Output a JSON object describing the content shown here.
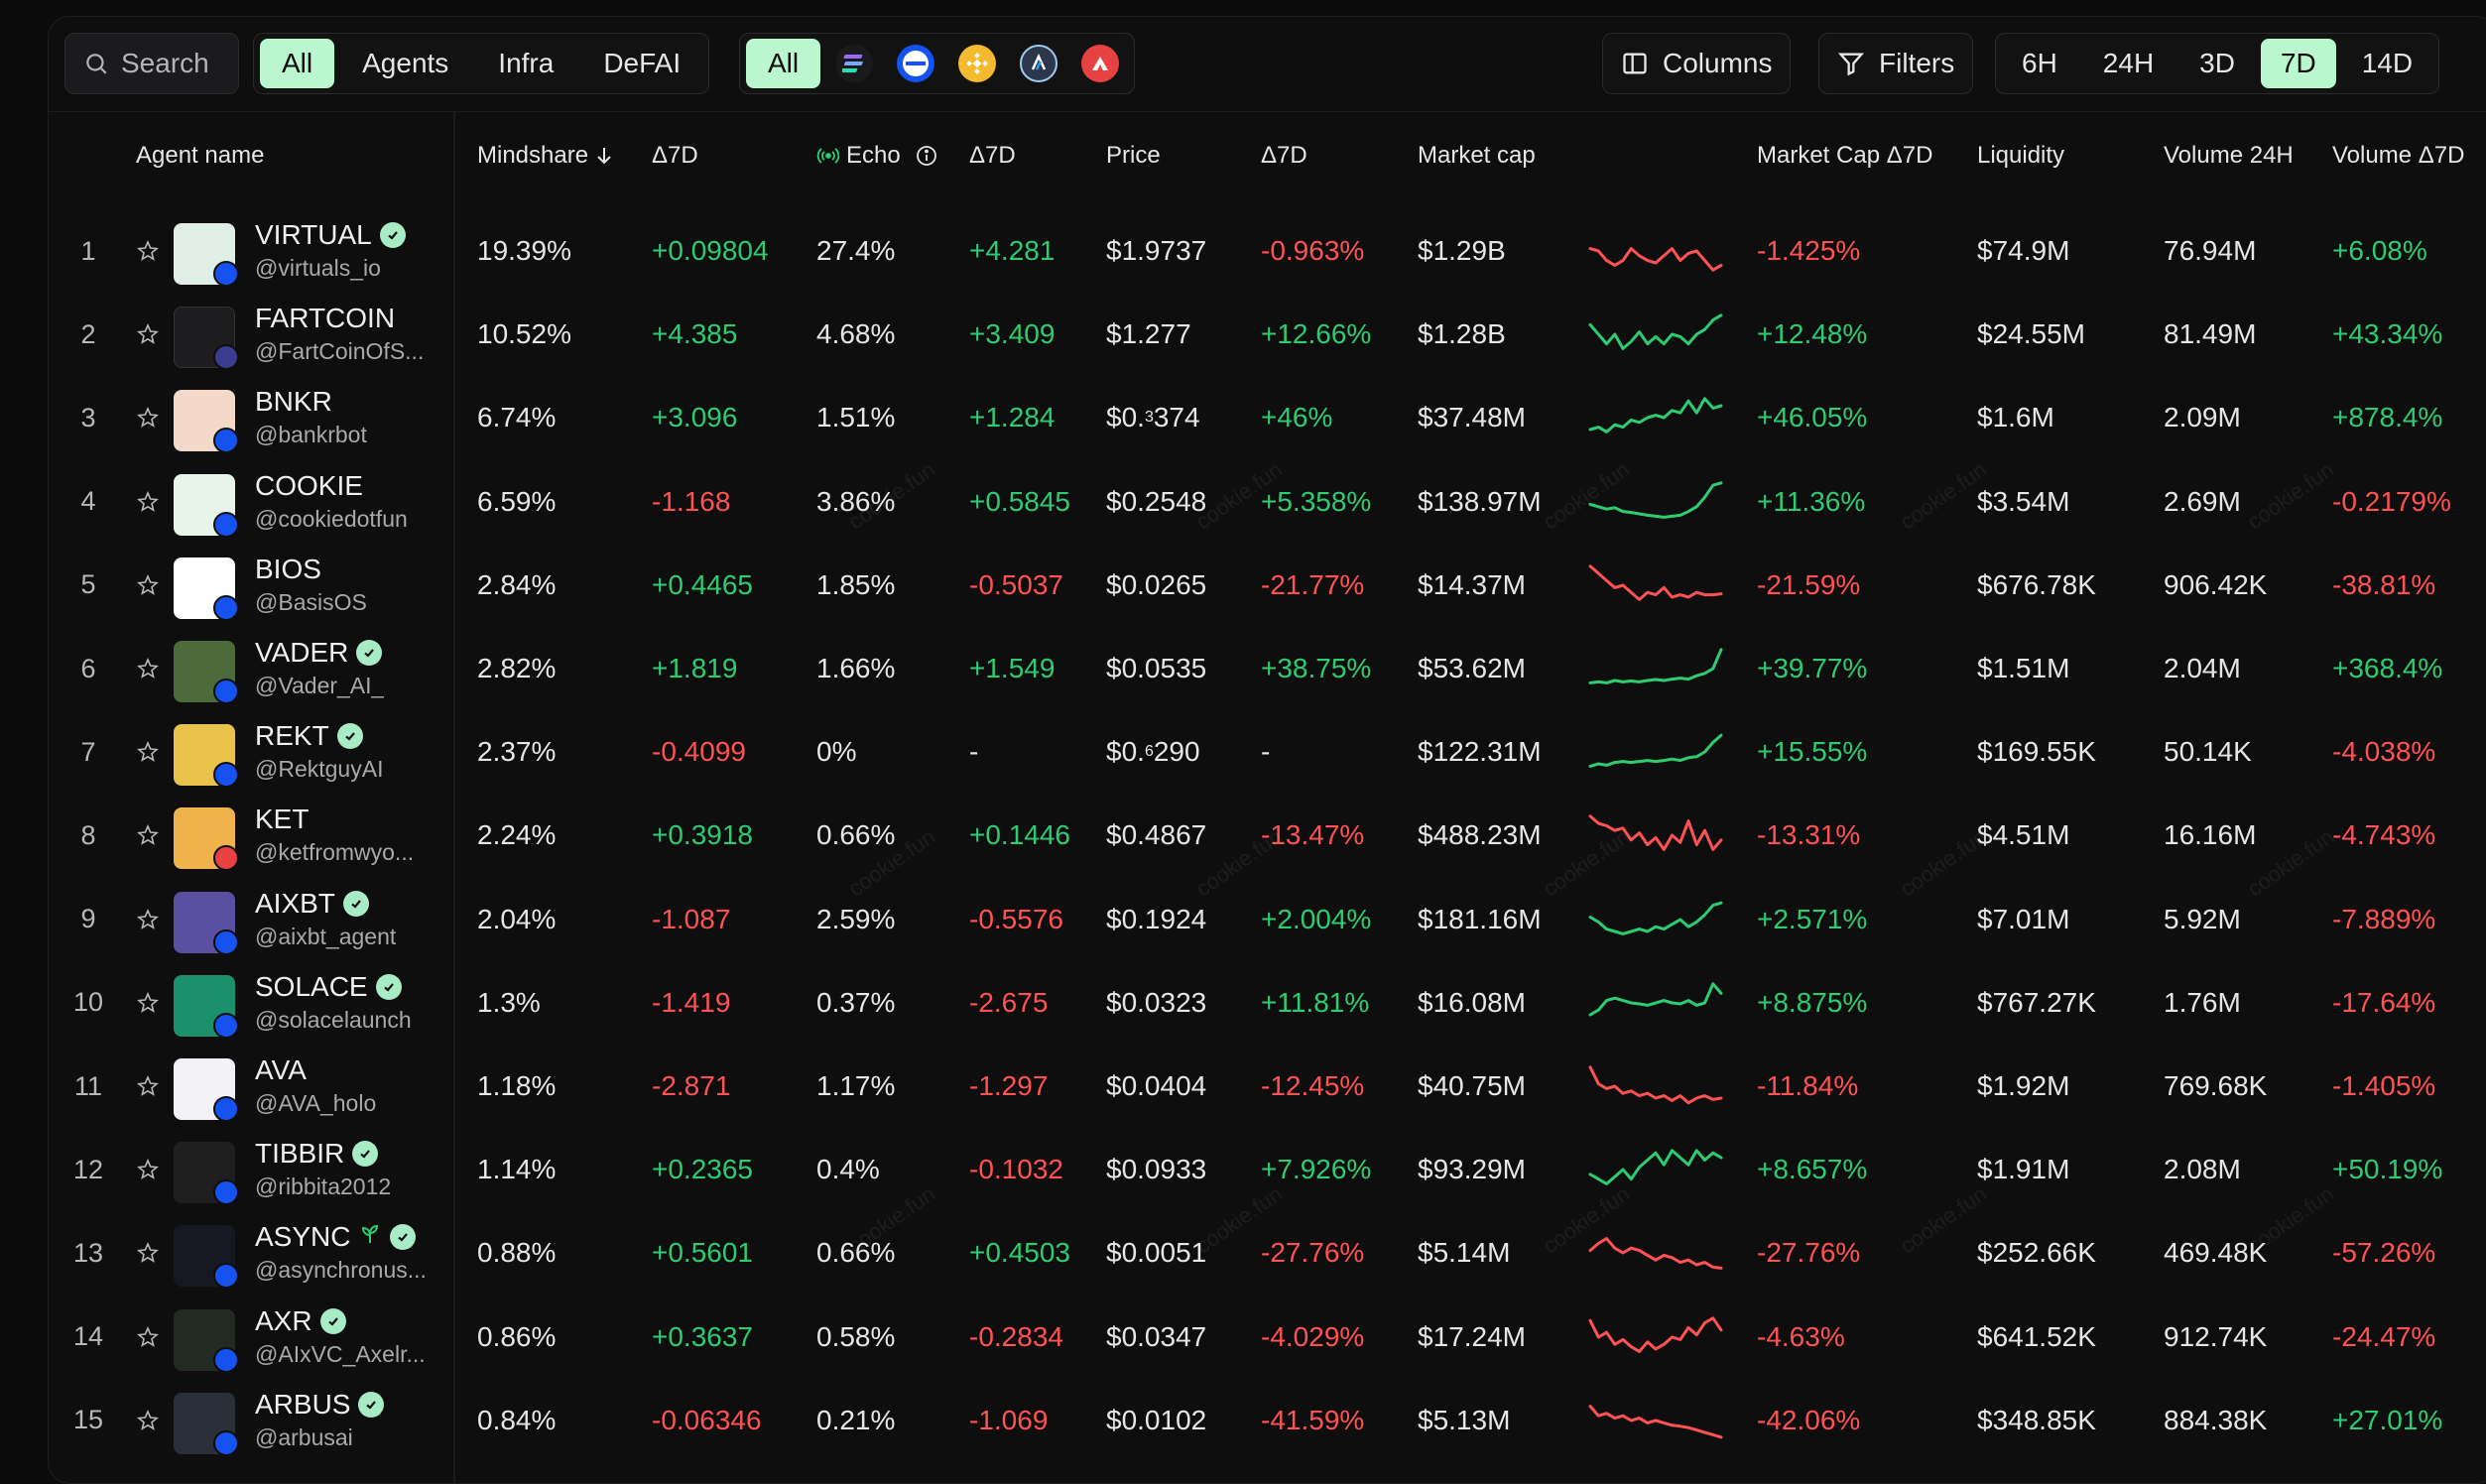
{
  "toolbar": {
    "search_placeholder": "Search",
    "categories": [
      {
        "label": "All",
        "active": true
      },
      {
        "label": "Agents",
        "active": false
      },
      {
        "label": "Infra",
        "active": false
      },
      {
        "label": "DeFAI",
        "active": false
      }
    ],
    "chains": {
      "all_label": "All",
      "icons": [
        "solana-icon",
        "base-icon",
        "bnb-icon",
        "arbitrum-icon",
        "avalanche-icon"
      ]
    },
    "columns_label": "Columns",
    "filters_label": "Filters",
    "timeframes": [
      {
        "label": "6H",
        "active": false
      },
      {
        "label": "24H",
        "active": false
      },
      {
        "label": "3D",
        "active": false
      },
      {
        "label": "7D",
        "active": true
      },
      {
        "label": "14D",
        "active": false
      }
    ]
  },
  "columns": {
    "agent_name": "Agent name",
    "mindshare": "Mindshare",
    "mindshare_delta": "Δ7D",
    "echo": "Echo",
    "echo_delta": "Δ7D",
    "price": "Price",
    "price_delta": "Δ7D",
    "market_cap": "Market cap",
    "market_cap_delta": "Market Cap Δ7D",
    "liquidity": "Liquidity",
    "volume": "Volume 24H",
    "volume_delta": "Volume Δ7D"
  },
  "watermark": "cookie.fun",
  "colors": {
    "positive": "#2ecc71",
    "negative": "#ff5252",
    "accent": "#baf7cf"
  },
  "rows": [
    {
      "rank": "1",
      "name": "VIRTUAL",
      "handle": "@virtuals_io",
      "verified": true,
      "mindshare": "19.39%",
      "mindshare_d": "+0.09804",
      "echo": "27.4%",
      "echo_d": "+4.281",
      "price": "$1.9737",
      "price_d": "-0.963%",
      "mcap": "$1.29B",
      "mcap_d": "-1.425%",
      "liq": "$74.9M",
      "vol": "76.94M",
      "vol_d": "+6.08%",
      "trend": [
        0.55,
        0.5,
        0.3,
        0.2,
        0.3,
        0.55,
        0.4,
        0.3,
        0.25,
        0.4,
        0.55,
        0.3,
        0.45,
        0.5,
        0.3,
        0.1,
        0.2
      ]
    },
    {
      "rank": "2",
      "name": "FARTCOIN",
      "handle": "@FartCoinOfS...",
      "verified": false,
      "mindshare": "10.52%",
      "mindshare_d": "+4.385",
      "echo": "4.68%",
      "echo_d": "+3.409",
      "price": "$1.277",
      "price_d": "+12.66%",
      "mcap": "$1.28B",
      "mcap_d": "+12.48%",
      "liq": "$24.55M",
      "vol": "81.49M",
      "vol_d": "+43.34%",
      "trend": [
        0.7,
        0.5,
        0.3,
        0.5,
        0.2,
        0.35,
        0.55,
        0.3,
        0.45,
        0.3,
        0.5,
        0.45,
        0.3,
        0.5,
        0.6,
        0.8,
        0.9
      ]
    },
    {
      "rank": "3",
      "name": "BNKR",
      "handle": "@bankrbot",
      "verified": false,
      "mindshare": "6.74%",
      "mindshare_d": "+3.096",
      "echo": "1.51%",
      "echo_d": "+1.284",
      "price_parts": [
        "$0.",
        "3",
        "374"
      ],
      "price": "",
      "price_d": "+46%",
      "mcap": "$37.48M",
      "mcap_d": "+46.05%",
      "liq": "$1.6M",
      "vol": "2.09M",
      "vol_d": "+878.4%",
      "trend": [
        0.25,
        0.3,
        0.2,
        0.35,
        0.3,
        0.45,
        0.4,
        0.5,
        0.55,
        0.5,
        0.65,
        0.6,
        0.85,
        0.6,
        0.9,
        0.7,
        0.75
      ]
    },
    {
      "rank": "4",
      "name": "COOKIE",
      "handle": "@cookiedotfun",
      "verified": false,
      "mindshare": "6.59%",
      "mindshare_d": "-1.168",
      "echo": "3.86%",
      "echo_d": "+0.5845",
      "price": "$0.2548",
      "price_d": "+5.358%",
      "mcap": "$138.97M",
      "mcap_d": "+11.36%",
      "liq": "$3.54M",
      "vol": "2.69M",
      "vol_d": "-0.2179%",
      "trend": [
        0.45,
        0.4,
        0.35,
        0.38,
        0.3,
        0.28,
        0.25,
        0.22,
        0.2,
        0.18,
        0.2,
        0.22,
        0.3,
        0.4,
        0.6,
        0.85,
        0.9
      ]
    },
    {
      "rank": "5",
      "name": "BIOS",
      "handle": "@BasisOS",
      "verified": false,
      "mindshare": "2.84%",
      "mindshare_d": "+0.4465",
      "echo": "1.85%",
      "echo_d": "-0.5037",
      "price": "$0.0265",
      "price_d": "-21.77%",
      "mcap": "$14.37M",
      "mcap_d": "-21.59%",
      "liq": "$676.78K",
      "vol": "906.42K",
      "vol_d": "-38.81%",
      "trend": [
        0.9,
        0.75,
        0.6,
        0.45,
        0.5,
        0.35,
        0.2,
        0.35,
        0.3,
        0.45,
        0.25,
        0.3,
        0.25,
        0.35,
        0.3,
        0.3,
        0.32
      ]
    },
    {
      "rank": "6",
      "name": "VADER",
      "handle": "@Vader_AI_",
      "verified": true,
      "mindshare": "2.82%",
      "mindshare_d": "+1.819",
      "echo": "1.66%",
      "echo_d": "+1.549",
      "price": "$0.0535",
      "price_d": "+38.75%",
      "mcap": "$53.62M",
      "mcap_d": "+39.77%",
      "liq": "$1.51M",
      "vol": "2.04M",
      "vol_d": "+368.4%",
      "trend": [
        0.2,
        0.22,
        0.2,
        0.25,
        0.22,
        0.24,
        0.22,
        0.25,
        0.27,
        0.25,
        0.28,
        0.3,
        0.28,
        0.35,
        0.4,
        0.5,
        0.9
      ]
    },
    {
      "rank": "7",
      "name": "REKT",
      "handle": "@RektguyAI",
      "verified": true,
      "mindshare": "2.37%",
      "mindshare_d": "-0.4099",
      "echo": "0%",
      "echo_d": "-",
      "echo_d_neutral": true,
      "price_parts": [
        "$0.",
        "6",
        "290"
      ],
      "price": "",
      "price_d": "-",
      "price_d_neutral": true,
      "mcap": "$122.31M",
      "mcap_d": "+15.55%",
      "liq": "$169.55K",
      "vol": "50.14K",
      "vol_d": "-4.038%",
      "trend": [
        0.2,
        0.25,
        0.22,
        0.28,
        0.3,
        0.28,
        0.3,
        0.32,
        0.3,
        0.32,
        0.35,
        0.32,
        0.38,
        0.4,
        0.5,
        0.7,
        0.85
      ]
    },
    {
      "rank": "8",
      "name": "KET",
      "handle": "@ketfromwyo...",
      "verified": false,
      "mindshare": "2.24%",
      "mindshare_d": "+0.3918",
      "echo": "0.66%",
      "echo_d": "+0.1446",
      "price": "$0.4867",
      "price_d": "-13.47%",
      "mcap": "$488.23M",
      "mcap_d": "-13.31%",
      "liq": "$4.51M",
      "vol": "16.16M",
      "vol_d": "-4.743%",
      "trend": [
        0.9,
        0.75,
        0.7,
        0.6,
        0.65,
        0.4,
        0.55,
        0.3,
        0.45,
        0.2,
        0.5,
        0.35,
        0.8,
        0.3,
        0.6,
        0.2,
        0.4
      ]
    },
    {
      "rank": "9",
      "name": "AIXBT",
      "handle": "@aixbt_agent",
      "verified": true,
      "mindshare": "2.04%",
      "mindshare_d": "-1.087",
      "echo": "2.59%",
      "echo_d": "-0.5576",
      "price": "$0.1924",
      "price_d": "+2.004%",
      "mcap": "$181.16M",
      "mcap_d": "+2.571%",
      "liq": "$7.01M",
      "vol": "5.92M",
      "vol_d": "-7.889%",
      "trend": [
        0.55,
        0.45,
        0.3,
        0.25,
        0.2,
        0.25,
        0.3,
        0.25,
        0.35,
        0.3,
        0.4,
        0.5,
        0.35,
        0.45,
        0.6,
        0.8,
        0.85
      ]
    },
    {
      "rank": "10",
      "name": "SOLACE",
      "handle": "@solacelaunch",
      "verified": true,
      "mindshare": "1.3%",
      "mindshare_d": "-1.419",
      "echo": "0.37%",
      "echo_d": "-2.675",
      "price": "$0.0323",
      "price_d": "+11.81%",
      "mcap": "$16.08M",
      "mcap_d": "+8.875%",
      "liq": "$767.27K",
      "vol": "1.76M",
      "vol_d": "-17.64%",
      "trend": [
        0.25,
        0.35,
        0.55,
        0.6,
        0.55,
        0.5,
        0.48,
        0.45,
        0.5,
        0.55,
        0.5,
        0.48,
        0.55,
        0.45,
        0.5,
        0.9,
        0.7
      ]
    },
    {
      "rank": "11",
      "name": "AVA",
      "handle": "@AVA_holo",
      "verified": false,
      "mindshare": "1.18%",
      "mindshare_d": "-2.871",
      "echo": "1.17%",
      "echo_d": "-1.297",
      "price": "$0.0404",
      "price_d": "-12.45%",
      "mcap": "$40.75M",
      "mcap_d": "-11.84%",
      "liq": "$1.92M",
      "vol": "769.68K",
      "vol_d": "-1.405%",
      "trend": [
        0.9,
        0.55,
        0.45,
        0.5,
        0.35,
        0.4,
        0.3,
        0.35,
        0.25,
        0.3,
        0.2,
        0.3,
        0.15,
        0.25,
        0.3,
        0.22,
        0.25
      ]
    },
    {
      "rank": "12",
      "name": "TIBBIR",
      "handle": "@ribbita2012",
      "verified": true,
      "mindshare": "1.14%",
      "mindshare_d": "+0.2365",
      "echo": "0.4%",
      "echo_d": "-0.1032",
      "price": "$0.0933",
      "price_d": "+7.926%",
      "mcap": "$93.29M",
      "mcap_d": "+8.657%",
      "liq": "$1.91M",
      "vol": "2.08M",
      "vol_d": "+50.19%",
      "trend": [
        0.4,
        0.3,
        0.2,
        0.35,
        0.5,
        0.3,
        0.55,
        0.7,
        0.85,
        0.6,
        0.9,
        0.75,
        0.6,
        0.9,
        0.7,
        0.85,
        0.75
      ]
    },
    {
      "rank": "13",
      "name": "ASYNC",
      "handle": "@asynchronus...",
      "verified": true,
      "sprout": true,
      "mindshare": "0.88%",
      "mindshare_d": "+0.5601",
      "echo": "0.66%",
      "echo_d": "+0.4503",
      "price": "$0.0051",
      "price_d": "-27.76%",
      "mcap": "$5.14M",
      "mcap_d": "-27.76%",
      "liq": "$252.66K",
      "vol": "469.48K",
      "vol_d": "-57.26%",
      "trend": [
        0.55,
        0.7,
        0.8,
        0.6,
        0.5,
        0.6,
        0.55,
        0.45,
        0.35,
        0.45,
        0.4,
        0.3,
        0.35,
        0.25,
        0.3,
        0.2,
        0.18
      ]
    },
    {
      "rank": "14",
      "name": "AXR",
      "handle": "@AIxVC_Axelr...",
      "verified": true,
      "mindshare": "0.86%",
      "mindshare_d": "+0.3637",
      "echo": "0.58%",
      "echo_d": "-0.2834",
      "price": "$0.0347",
      "price_d": "-4.029%",
      "mcap": "$17.24M",
      "mcap_d": "-4.63%",
      "liq": "$641.52K",
      "vol": "912.74K",
      "vol_d": "-24.47%",
      "trend": [
        0.85,
        0.5,
        0.6,
        0.35,
        0.45,
        0.3,
        0.2,
        0.4,
        0.25,
        0.35,
        0.5,
        0.45,
        0.7,
        0.55,
        0.8,
        0.9,
        0.65
      ]
    },
    {
      "rank": "15",
      "name": "ARBUS",
      "handle": "@arbusai",
      "verified": true,
      "mindshare": "0.84%",
      "mindshare_d": "-0.06346",
      "echo": "0.21%",
      "echo_d": "-1.069",
      "price": "$0.0102",
      "price_d": "-41.59%",
      "mcap": "$5.13M",
      "mcap_d": "-42.06%",
      "liq": "$348.85K",
      "vol": "884.38K",
      "vol_d": "+27.01%",
      "trend": [
        0.8,
        0.6,
        0.65,
        0.55,
        0.6,
        0.5,
        0.55,
        0.45,
        0.5,
        0.45,
        0.4,
        0.38,
        0.35,
        0.3,
        0.25,
        0.2,
        0.15
      ]
    }
  ]
}
